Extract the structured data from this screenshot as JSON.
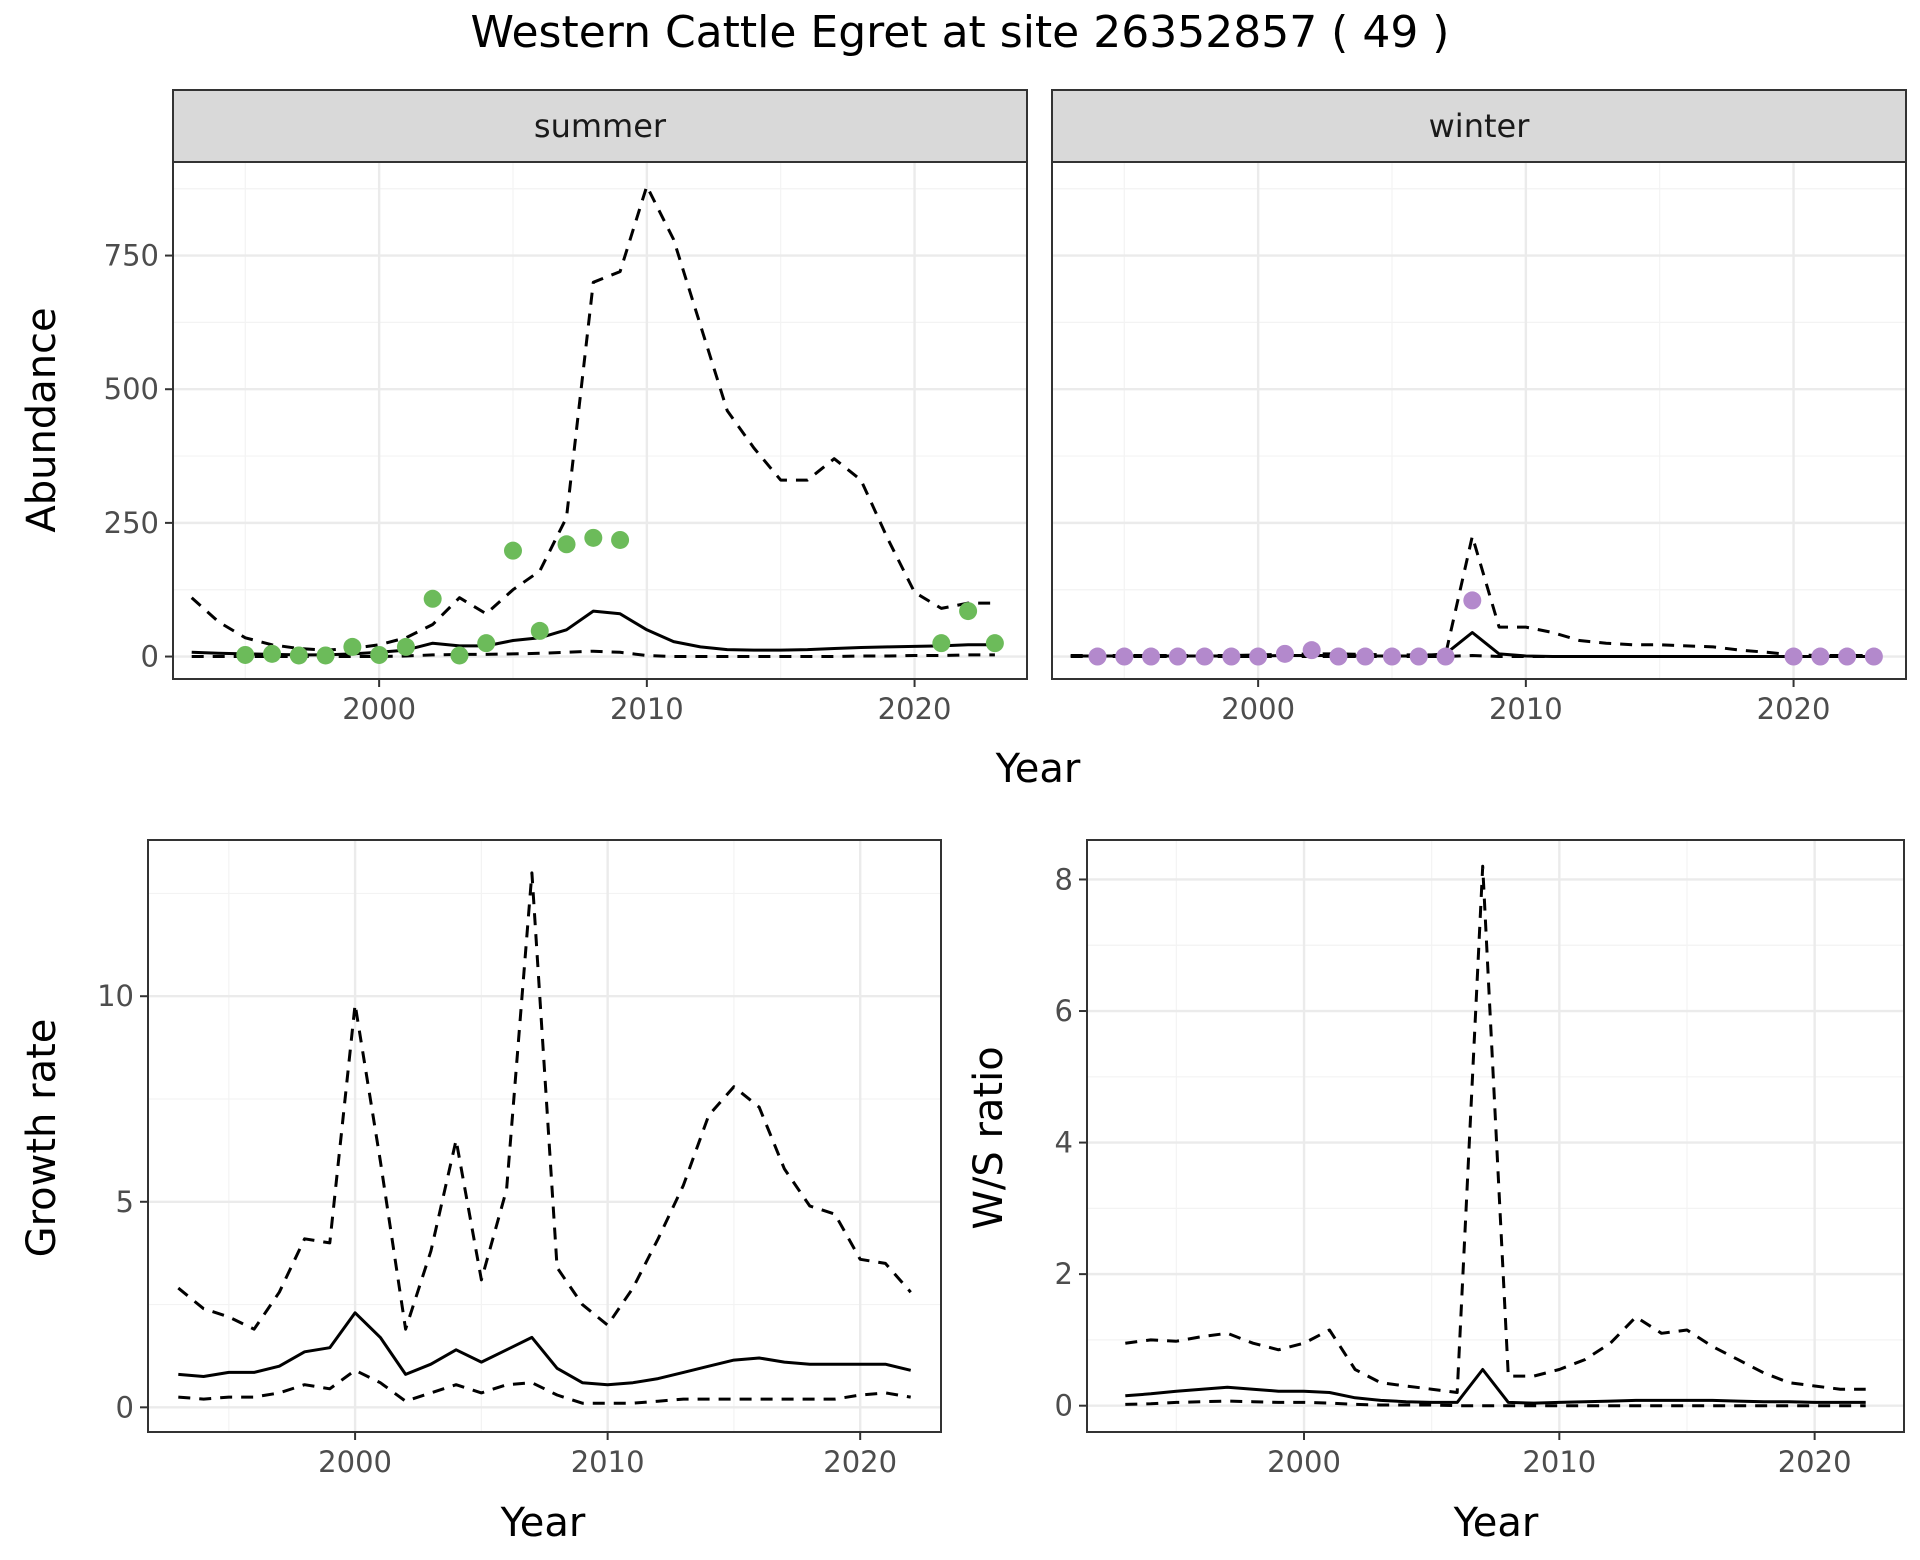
{
  "title": "Western Cattle Egret at site 26352857 ( 49 )",
  "colors": {
    "summer_points": "#6cbb5a",
    "winter_points": "#b389cc",
    "lines": "#000000"
  },
  "chart_data": [
    {
      "id": "abundance",
      "type": "line",
      "ylabel": "Abundance",
      "xlabel": "Year",
      "xlim": [
        1992.3,
        2024.2
      ],
      "ylim": [
        -42,
        925
      ],
      "xticks": [
        2000,
        2010,
        2020
      ],
      "yticks": [
        0,
        250,
        500,
        750
      ],
      "grid": true,
      "panels": [
        {
          "strip": "summer",
          "point_color": "#6cbb5a",
          "series": [
            {
              "style": "dashed",
              "x": [
                1993,
                1994,
                1995,
                1996,
                1997,
                1998,
                1999,
                2000,
                2001,
                2002,
                2003,
                2004,
                2005,
                2006,
                2007,
                2008,
                2009,
                2010,
                2011,
                2012,
                2013,
                2014,
                2015,
                2016,
                2017,
                2018,
                2019,
                2020,
                2021,
                2022,
                2023
              ],
              "y": [
                110,
                65,
                35,
                22,
                15,
                12,
                15,
                22,
                35,
                60,
                110,
                80,
                125,
                160,
                260,
                700,
                720,
                880,
                780,
                620,
                460,
                390,
                330,
                330,
                370,
                330,
                220,
                120,
                90,
                100,
                100
              ]
            },
            {
              "style": "solid",
              "x": [
                1993,
                1994,
                1995,
                1996,
                1997,
                1998,
                1999,
                2000,
                2001,
                2002,
                2003,
                2004,
                2005,
                2006,
                2007,
                2008,
                2009,
                2010,
                2011,
                2012,
                2013,
                2014,
                2015,
                2016,
                2017,
                2018,
                2019,
                2020,
                2021,
                2022,
                2023
              ],
              "y": [
                8,
                6,
                5,
                4,
                3,
                3,
                5,
                8,
                12,
                25,
                20,
                20,
                30,
                35,
                50,
                85,
                80,
                50,
                28,
                18,
                13,
                12,
                12,
                13,
                15,
                17,
                18,
                19,
                20,
                22,
                22
              ]
            },
            {
              "style": "dashed",
              "x": [
                1993,
                1994,
                1995,
                1996,
                1997,
                1998,
                1999,
                2000,
                2001,
                2002,
                2003,
                2004,
                2005,
                2006,
                2007,
                2008,
                2009,
                2010,
                2011,
                2012,
                2013,
                2014,
                2015,
                2016,
                2017,
                2018,
                2019,
                2020,
                2021,
                2022,
                2023
              ],
              "y": [
                0,
                0,
                0,
                0,
                0,
                0,
                0,
                0,
                1,
                3,
                4,
                4,
                5,
                6,
                8,
                10,
                8,
                2,
                0,
                0,
                0,
                0,
                0,
                0,
                0,
                1,
                1,
                2,
                2,
                3,
                3
              ]
            }
          ],
          "points": {
            "x": [
              1995,
              1996,
              1997,
              1998,
              1999,
              2000,
              2001,
              2002,
              2003,
              2004,
              2005,
              2006,
              2007,
              2008,
              2009,
              2021,
              2022,
              2023
            ],
            "y": [
              3,
              5,
              2,
              2,
              18,
              3,
              18,
              108,
              2,
              25,
              198,
              48,
              210,
              222,
              218,
              25,
              85,
              25
            ]
          }
        },
        {
          "strip": "winter",
          "point_color": "#b389cc",
          "series": [
            {
              "style": "dashed",
              "x": [
                1993,
                1994,
                1995,
                1996,
                1997,
                1998,
                1999,
                2000,
                2001,
                2002,
                2003,
                2004,
                2005,
                2006,
                2007,
                2008,
                2009,
                2010,
                2011,
                2012,
                2013,
                2014,
                2015,
                2016,
                2017,
                2018,
                2019,
                2020,
                2021,
                2022,
                2023
              ],
              "y": [
                2,
                2,
                2,
                2,
                2,
                2,
                2,
                3,
                4,
                5,
                5,
                4,
                3,
                3,
                3,
                225,
                55,
                55,
                45,
                30,
                25,
                22,
                22,
                20,
                18,
                12,
                8,
                3,
                2,
                2,
                2
              ]
            },
            {
              "style": "solid",
              "x": [
                1993,
                1994,
                1995,
                1996,
                1997,
                1998,
                1999,
                2000,
                2001,
                2002,
                2003,
                2004,
                2005,
                2006,
                2007,
                2008,
                2009,
                2010,
                2011,
                2012,
                2013,
                2014,
                2015,
                2016,
                2017,
                2018,
                2019,
                2020,
                2021,
                2022,
                2023
              ],
              "y": [
                1,
                1,
                1,
                1,
                1,
                1,
                1,
                1,
                2,
                2,
                2,
                1,
                1,
                1,
                5,
                45,
                5,
                1,
                0,
                0,
                0,
                0,
                0,
                0,
                0,
                0,
                0,
                0,
                0,
                0,
                0
              ]
            },
            {
              "style": "dashed",
              "x": [
                1993,
                1994,
                1995,
                1996,
                1997,
                1998,
                1999,
                2000,
                2001,
                2002,
                2003,
                2004,
                2005,
                2006,
                2007,
                2008,
                2009,
                2010,
                2011,
                2012,
                2013,
                2014,
                2015,
                2016,
                2017,
                2018,
                2019,
                2020,
                2021,
                2022,
                2023
              ],
              "y": [
                0,
                0,
                0,
                0,
                0,
                0,
                0,
                0,
                0,
                0,
                0,
                0,
                0,
                0,
                0,
                2,
                0,
                0,
                0,
                0,
                0,
                0,
                0,
                0,
                0,
                0,
                0,
                0,
                0,
                0,
                0
              ]
            }
          ],
          "points": {
            "x": [
              1994,
              1995,
              1996,
              1997,
              1998,
              1999,
              2000,
              2001,
              2002,
              2003,
              2004,
              2005,
              2006,
              2007,
              2008,
              2020,
              2021,
              2022,
              2023
            ],
            "y": [
              0,
              0,
              0,
              0,
              0,
              0,
              0,
              5,
              12,
              0,
              0,
              0,
              0,
              0,
              105,
              0,
              0,
              0,
              0
            ]
          }
        }
      ]
    },
    {
      "id": "growth",
      "type": "line",
      "ylabel": "Growth rate",
      "xlabel": "Year",
      "xlim": [
        1991.8,
        2023.2
      ],
      "ylim": [
        -0.6,
        13.8
      ],
      "xticks": [
        2000,
        2010,
        2020
      ],
      "yticks": [
        0,
        5,
        10
      ],
      "grid": true,
      "series": [
        {
          "style": "dashed",
          "x": [
            1993,
            1994,
            1995,
            1996,
            1997,
            1998,
            1999,
            2000,
            2001,
            2002,
            2003,
            2004,
            2005,
            2006,
            2007,
            2008,
            2009,
            2010,
            2011,
            2012,
            2013,
            2014,
            2015,
            2016,
            2017,
            2018,
            2019,
            2020,
            2021,
            2022
          ],
          "y": [
            2.9,
            2.4,
            2.2,
            1.9,
            2.8,
            4.1,
            4.0,
            9.8,
            6.0,
            1.9,
            3.8,
            6.5,
            3.1,
            5.3,
            13.0,
            3.4,
            2.5,
            2.0,
            2.9,
            4.1,
            5.4,
            7.1,
            7.8,
            7.3,
            5.8,
            4.9,
            4.7,
            3.6,
            3.5,
            2.8
          ]
        },
        {
          "style": "solid",
          "x": [
            1993,
            1994,
            1995,
            1996,
            1997,
            1998,
            1999,
            2000,
            2001,
            2002,
            2003,
            2004,
            2005,
            2006,
            2007,
            2008,
            2009,
            2010,
            2011,
            2012,
            2013,
            2014,
            2015,
            2016,
            2017,
            2018,
            2019,
            2020,
            2021,
            2022
          ],
          "y": [
            0.8,
            0.75,
            0.85,
            0.85,
            1.0,
            1.35,
            1.45,
            2.3,
            1.7,
            0.8,
            1.05,
            1.4,
            1.1,
            1.4,
            1.7,
            0.95,
            0.6,
            0.55,
            0.6,
            0.7,
            0.85,
            1.0,
            1.15,
            1.2,
            1.1,
            1.05,
            1.05,
            1.05,
            1.05,
            0.9
          ]
        },
        {
          "style": "dashed",
          "x": [
            1993,
            1994,
            1995,
            1996,
            1997,
            1998,
            1999,
            2000,
            2001,
            2002,
            2003,
            2004,
            2005,
            2006,
            2007,
            2008,
            2009,
            2010,
            2011,
            2012,
            2013,
            2014,
            2015,
            2016,
            2017,
            2018,
            2019,
            2020,
            2021,
            2022
          ],
          "y": [
            0.25,
            0.2,
            0.25,
            0.25,
            0.35,
            0.55,
            0.45,
            0.9,
            0.6,
            0.15,
            0.35,
            0.55,
            0.35,
            0.55,
            0.6,
            0.3,
            0.1,
            0.1,
            0.1,
            0.15,
            0.2,
            0.2,
            0.2,
            0.2,
            0.2,
            0.2,
            0.2,
            0.3,
            0.35,
            0.25
          ]
        }
      ]
    },
    {
      "id": "ws_ratio",
      "type": "line",
      "ylabel": "W/S ratio",
      "xlabel": "Year",
      "xlim": [
        1991.5,
        2023.5
      ],
      "ylim": [
        -0.4,
        8.6
      ],
      "xticks": [
        2000,
        2010,
        2020
      ],
      "yticks": [
        0,
        2,
        4,
        6,
        8
      ],
      "grid": true,
      "series": [
        {
          "style": "dashed",
          "x": [
            1993,
            1994,
            1995,
            1996,
            1997,
            1998,
            1999,
            2000,
            2001,
            2002,
            2003,
            2004,
            2005,
            2006,
            2007,
            2008,
            2009,
            2010,
            2011,
            2012,
            2013,
            2014,
            2015,
            2016,
            2017,
            2018,
            2019,
            2020,
            2021,
            2022
          ],
          "y": [
            0.95,
            1.0,
            0.98,
            1.05,
            1.1,
            0.95,
            0.85,
            0.95,
            1.15,
            0.55,
            0.35,
            0.3,
            0.25,
            0.2,
            8.2,
            0.45,
            0.45,
            0.55,
            0.7,
            0.95,
            1.35,
            1.1,
            1.15,
            0.9,
            0.7,
            0.5,
            0.35,
            0.3,
            0.25,
            0.25
          ]
        },
        {
          "style": "solid",
          "x": [
            1993,
            1994,
            1995,
            1996,
            1997,
            1998,
            1999,
            2000,
            2001,
            2002,
            2003,
            2004,
            2005,
            2006,
            2007,
            2008,
            2009,
            2010,
            2011,
            2012,
            2013,
            2014,
            2015,
            2016,
            2017,
            2018,
            2019,
            2020,
            2021,
            2022
          ],
          "y": [
            0.15,
            0.18,
            0.22,
            0.25,
            0.28,
            0.25,
            0.22,
            0.22,
            0.2,
            0.12,
            0.08,
            0.06,
            0.05,
            0.05,
            0.55,
            0.05,
            0.04,
            0.05,
            0.06,
            0.07,
            0.08,
            0.08,
            0.08,
            0.08,
            0.07,
            0.06,
            0.06,
            0.05,
            0.05,
            0.05
          ]
        },
        {
          "style": "dashed",
          "x": [
            1993,
            1994,
            1995,
            1996,
            1997,
            1998,
            1999,
            2000,
            2001,
            2002,
            2003,
            2004,
            2005,
            2006,
            2007,
            2008,
            2009,
            2010,
            2011,
            2012,
            2013,
            2014,
            2015,
            2016,
            2017,
            2018,
            2019,
            2020,
            2021,
            2022
          ],
          "y": [
            0.02,
            0.03,
            0.05,
            0.06,
            0.07,
            0.06,
            0.05,
            0.05,
            0.04,
            0.02,
            0.01,
            0.01,
            0.01,
            0.0,
            0.0,
            0.0,
            0.0,
            0.0,
            0.0,
            0.0,
            0.0,
            0.0,
            0.0,
            0.0,
            0.0,
            0.0,
            0.0,
            0.0,
            0.0,
            0.0
          ]
        }
      ]
    }
  ]
}
